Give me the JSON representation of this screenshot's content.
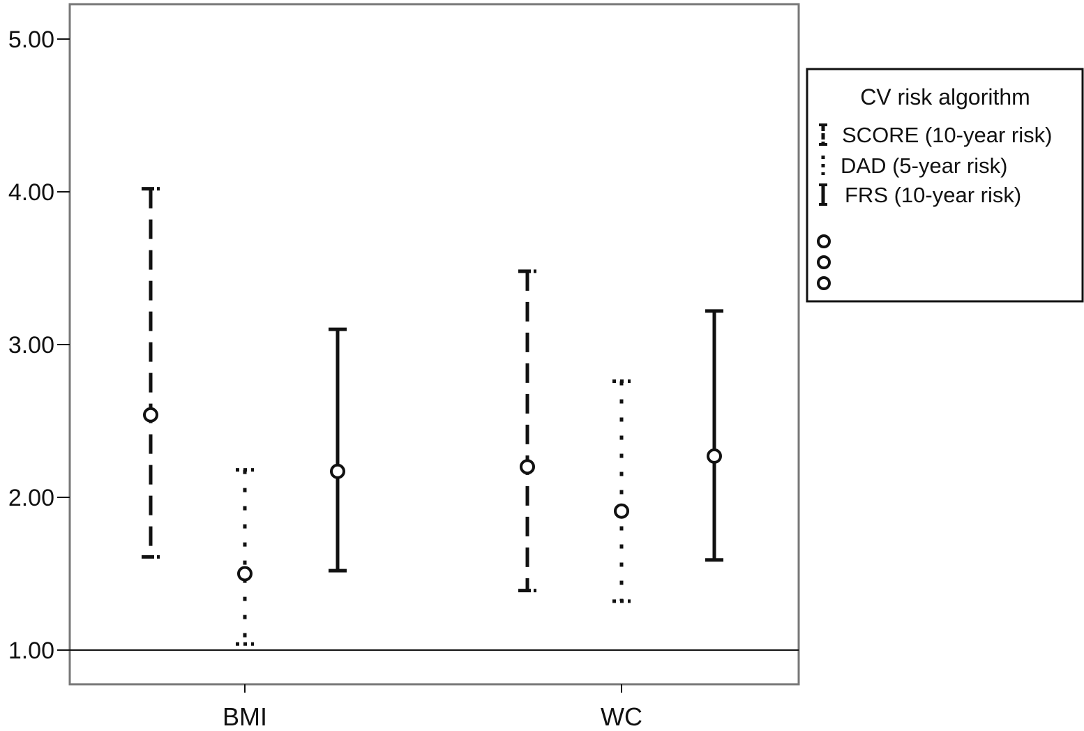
{
  "chart_data": {
    "type": "errorbar",
    "categories": [
      "BMI",
      "WC"
    ],
    "ylim": [
      0.8,
      5.25
    ],
    "yticks": [
      1.0,
      2.0,
      3.0,
      4.0,
      5.0
    ],
    "ytick_labels": [
      "1.00",
      "2.00",
      "3.00",
      "4.00",
      "5.00"
    ],
    "reference_line": 1.0,
    "grid": false,
    "legend": {
      "title": "CV risk algorithm",
      "placement": "right",
      "entries": [
        "SCORE (10-year risk)",
        "DAD (5-year risk)",
        "FRS (10-year risk)"
      ]
    },
    "series": [
      {
        "name": "SCORE (10-year risk)",
        "style": "dashed",
        "points": [
          {
            "category": "BMI",
            "estimate": 2.54,
            "lower": 1.61,
            "upper": 4.02
          },
          {
            "category": "WC",
            "estimate": 2.2,
            "lower": 1.39,
            "upper": 3.48
          }
        ]
      },
      {
        "name": "DAD (5-year risk)",
        "style": "dotted",
        "points": [
          {
            "category": "BMI",
            "estimate": 1.5,
            "lower": 1.04,
            "upper": 2.18
          },
          {
            "category": "WC",
            "estimate": 1.91,
            "lower": 1.32,
            "upper": 2.76
          }
        ]
      },
      {
        "name": "FRS (10-year risk)",
        "style": "solid",
        "points": [
          {
            "category": "BMI",
            "estimate": 2.17,
            "lower": 1.52,
            "upper": 3.1
          },
          {
            "category": "WC",
            "estimate": 2.27,
            "lower": 1.59,
            "upper": 3.22
          }
        ]
      }
    ]
  }
}
